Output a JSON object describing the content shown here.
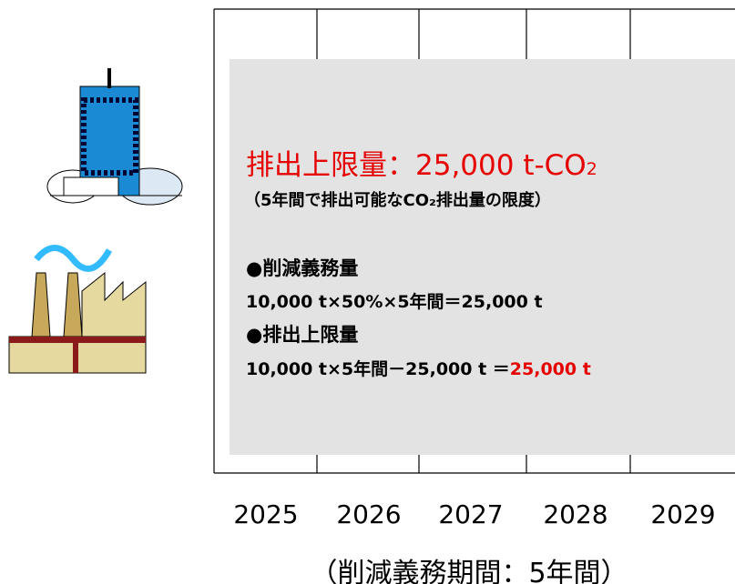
{
  "box": {
    "title": "排出上限量：25,000 t-CO",
    "title_sub": "2",
    "subtitle": "（5年間で排出可能なCO₂排出量の限度）",
    "items": [
      {
        "heading": "●削減義務量",
        "formula": "10,000 t×50%×5年間＝25,000 t"
      },
      {
        "heading": "●排出上限量",
        "formula": "10,000 t×5年間－25,000 t ＝",
        "result": "25,000 t"
      }
    ]
  },
  "years": [
    2025,
    2026,
    2027,
    2028,
    2029
  ],
  "period_label": "（削減義務期間：5年間）"
}
